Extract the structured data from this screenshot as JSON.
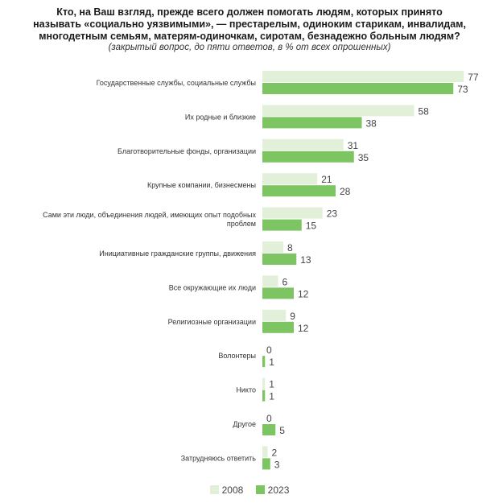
{
  "title_lines": [
    "Кто, на Ваш взгляд, прежде всего должен помогать людям, которых принято",
    "называть «социально уязвимыми», — престарелым, одиноким старикам, инвалидам,",
    "многодетным семьям, матерям-одиночкам, сиротам, безнадежно больным людям?"
  ],
  "subtitle": "(закрытый вопрос, до пяти ответов, в % от всех опрошенных)",
  "colors": {
    "2008": "#e2f0d9",
    "2023": "#7dc462"
  },
  "chart_data": {
    "type": "bar",
    "orientation": "horizontal",
    "title": "Кто, на Ваш взгляд, прежде всего должен помогать людям, которых принято называть «социально уязвимыми», — престарелым, одиноким старикам, инвалидам, многодетным семьям, матерям-одиночкам, сиротам, безнадежно больным людям?",
    "subtitle": "(закрытый вопрос, до пяти ответов, в % от всех опрошенных)",
    "categories": [
      [
        "Государственные службы, социальные службы"
      ],
      [
        "Их родные и близкие"
      ],
      [
        "Благотворительные фонды, организации"
      ],
      [
        "Крупные компании, бизнесмены"
      ],
      [
        "Сами эти люди, объединения людей, имеющих опыт подобных",
        "проблем"
      ],
      [
        "Инициативные гражданские группы, движения"
      ],
      [
        "Все окружающие их люди"
      ],
      [
        "Религиозные организации"
      ],
      [
        "Волонтеры"
      ],
      [
        "Никто"
      ],
      [
        "Другое"
      ],
      [
        "Затрудняюсь ответить"
      ]
    ],
    "series": [
      {
        "name": "2008",
        "values": [
          77,
          58,
          31,
          21,
          23,
          8,
          6,
          9,
          0,
          1,
          0,
          2
        ]
      },
      {
        "name": "2023",
        "values": [
          73,
          38,
          35,
          28,
          15,
          13,
          12,
          12,
          1,
          1,
          5,
          3
        ]
      }
    ],
    "xlim": [
      0,
      80
    ],
    "grid": false,
    "data_labels": true,
    "legend": "bottom"
  }
}
